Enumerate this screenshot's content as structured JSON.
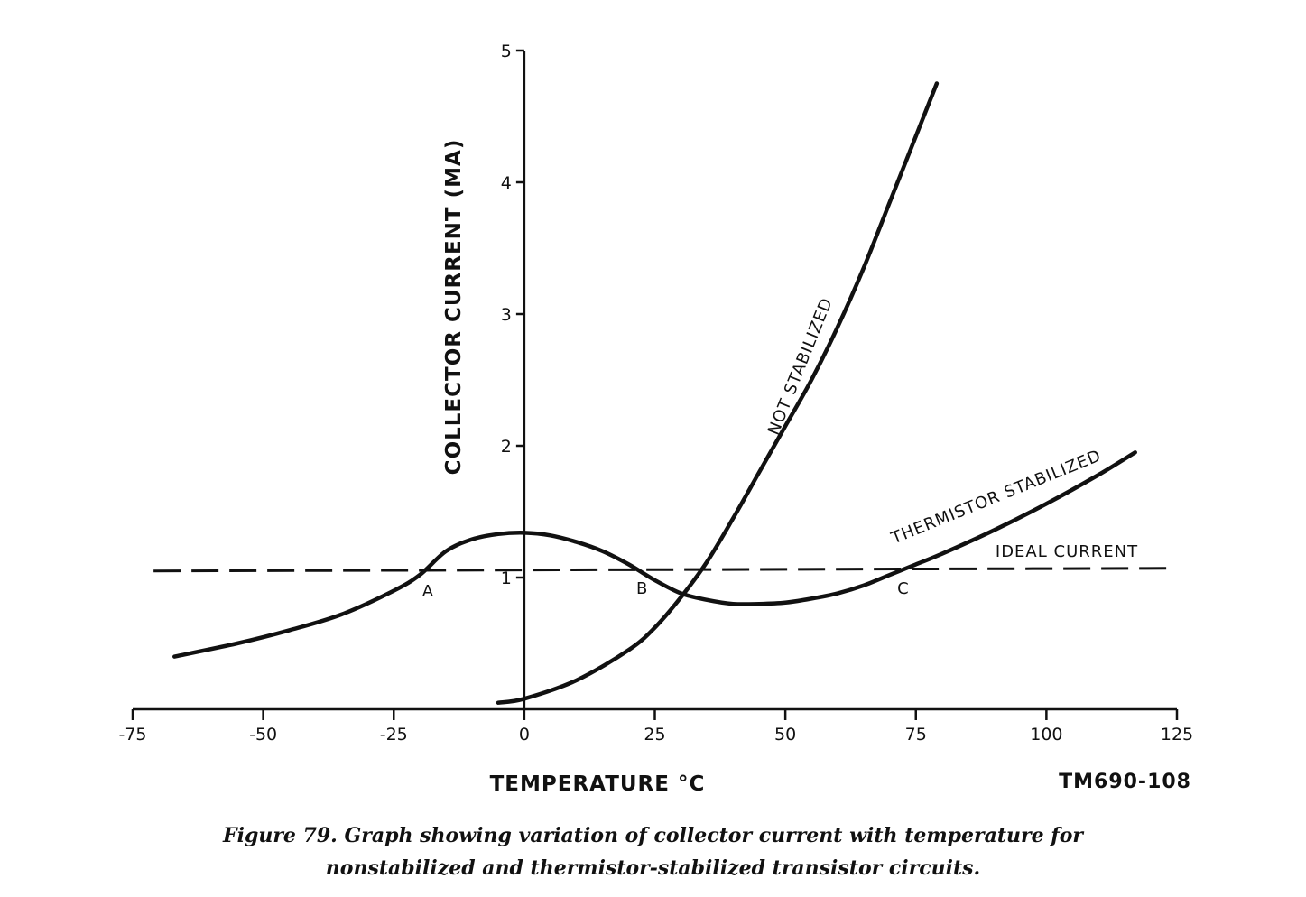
{
  "chart_data": {
    "type": "line",
    "xlabel": "TEMPERATURE °C",
    "ylabel": "COLLECTOR CURRENT (MA)",
    "xlim": [
      -75,
      125
    ],
    "ylim": [
      0,
      5
    ],
    "x_ticks": [
      -75,
      -50,
      -25,
      0,
      25,
      50,
      75,
      100,
      125
    ],
    "x_tick_labels": [
      "-75",
      "-50",
      "-25",
      "0",
      "25",
      "50",
      "75",
      "100",
      "125"
    ],
    "y_ticks": [
      1,
      2,
      3,
      4,
      5
    ],
    "y_tick_labels": [
      "1",
      "2",
      "3",
      "4",
      "5"
    ],
    "grid": false,
    "series": [
      {
        "name": "NOT STABILIZED",
        "style": "solid",
        "x": [
          -5,
          0,
          10,
          20,
          25,
          30,
          35,
          40,
          45,
          50,
          55,
          60,
          65,
          70,
          75,
          79
        ],
        "y": [
          0.05,
          0.08,
          0.22,
          0.45,
          0.62,
          0.85,
          1.12,
          1.45,
          1.8,
          2.15,
          2.5,
          2.9,
          3.35,
          3.85,
          4.35,
          4.75
        ]
      },
      {
        "name": "THERMISTOR STABILIZED",
        "style": "solid",
        "x": [
          -67,
          -55,
          -45,
          -35,
          -25,
          -20,
          -15,
          -10,
          -5,
          0,
          5,
          10,
          15,
          20,
          25,
          30,
          35,
          40,
          45,
          50,
          55,
          60,
          65,
          70,
          75,
          80,
          90,
          100,
          110,
          117
        ],
        "y": [
          0.4,
          0.5,
          0.6,
          0.72,
          0.9,
          1.02,
          1.2,
          1.29,
          1.33,
          1.34,
          1.32,
          1.27,
          1.2,
          1.1,
          0.98,
          0.88,
          0.83,
          0.8,
          0.8,
          0.81,
          0.84,
          0.88,
          0.94,
          1.02,
          1.1,
          1.18,
          1.36,
          1.56,
          1.78,
          1.95
        ]
      },
      {
        "name": "IDEAL CURRENT",
        "style": "dashed",
        "x": [
          -71,
          124
        ],
        "y": [
          1.05,
          1.07
        ]
      }
    ],
    "points": [
      {
        "label": "A",
        "x": -19,
        "y": 1.04
      },
      {
        "label": "B",
        "x": 22,
        "y": 1.06
      },
      {
        "label": "C",
        "x": 72,
        "y": 1.06
      }
    ],
    "plate_id": "TM690-108"
  },
  "caption_line1": "Figure 79.  Graph showing variation of collector current with temperature for",
  "caption_line2": "nonstabilized and thermistor-stabilized transistor circuits."
}
